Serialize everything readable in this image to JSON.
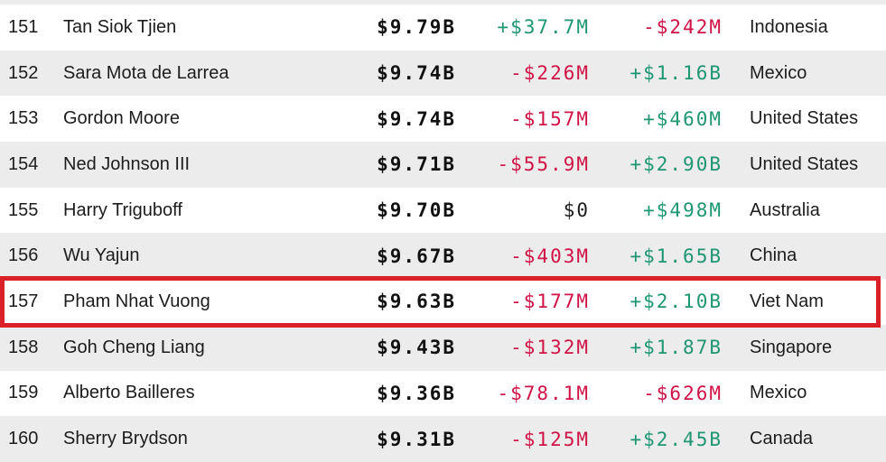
{
  "table": {
    "colors": {
      "positive": "#1e9673",
      "negative": "#d01245",
      "highlight_border": "#da2128",
      "alt_row_bg": "#ececec"
    },
    "rows": [
      {
        "rank": "151",
        "name": "Tan Siok Tjien",
        "net_worth": "$9.79B",
        "daily_change": "+$37.7M",
        "daily_dir": "up",
        "ytd_change": "-$242M",
        "ytd_dir": "down",
        "country": "Indonesia",
        "highlighted": false
      },
      {
        "rank": "152",
        "name": "Sara Mota de Larrea",
        "net_worth": "$9.74B",
        "daily_change": "-$226M",
        "daily_dir": "down",
        "ytd_change": "+$1.16B",
        "ytd_dir": "up",
        "country": "Mexico",
        "highlighted": false
      },
      {
        "rank": "153",
        "name": "Gordon Moore",
        "net_worth": "$9.74B",
        "daily_change": "-$157M",
        "daily_dir": "down",
        "ytd_change": "+$460M",
        "ytd_dir": "up",
        "country": "United States",
        "highlighted": false
      },
      {
        "rank": "154",
        "name": "Ned Johnson III",
        "net_worth": "$9.71B",
        "daily_change": "-$55.9M",
        "daily_dir": "down",
        "ytd_change": "+$2.90B",
        "ytd_dir": "up",
        "country": "United States",
        "highlighted": false
      },
      {
        "rank": "155",
        "name": "Harry Triguboff",
        "net_worth": "$9.70B",
        "daily_change": "$0",
        "daily_dir": "flat",
        "ytd_change": "+$498M",
        "ytd_dir": "up",
        "country": "Australia",
        "highlighted": false
      },
      {
        "rank": "156",
        "name": "Wu Yajun",
        "net_worth": "$9.67B",
        "daily_change": "-$403M",
        "daily_dir": "down",
        "ytd_change": "+$1.65B",
        "ytd_dir": "up",
        "country": "China",
        "highlighted": false
      },
      {
        "rank": "157",
        "name": "Pham Nhat Vuong",
        "net_worth": "$9.63B",
        "daily_change": "-$177M",
        "daily_dir": "down",
        "ytd_change": "+$2.10B",
        "ytd_dir": "up",
        "country": "Viet Nam",
        "highlighted": true
      },
      {
        "rank": "158",
        "name": "Goh Cheng Liang",
        "net_worth": "$9.43B",
        "daily_change": "-$132M",
        "daily_dir": "down",
        "ytd_change": "+$1.87B",
        "ytd_dir": "up",
        "country": "Singapore",
        "highlighted": false
      },
      {
        "rank": "159",
        "name": "Alberto Bailleres",
        "net_worth": "$9.36B",
        "daily_change": "-$78.1M",
        "daily_dir": "down",
        "ytd_change": "-$626M",
        "ytd_dir": "down",
        "country": "Mexico",
        "highlighted": false
      },
      {
        "rank": "160",
        "name": "Sherry Brydson",
        "net_worth": "$9.31B",
        "daily_change": "-$125M",
        "daily_dir": "down",
        "ytd_change": "+$2.45B",
        "ytd_dir": "up",
        "country": "Canada",
        "highlighted": false
      }
    ]
  }
}
